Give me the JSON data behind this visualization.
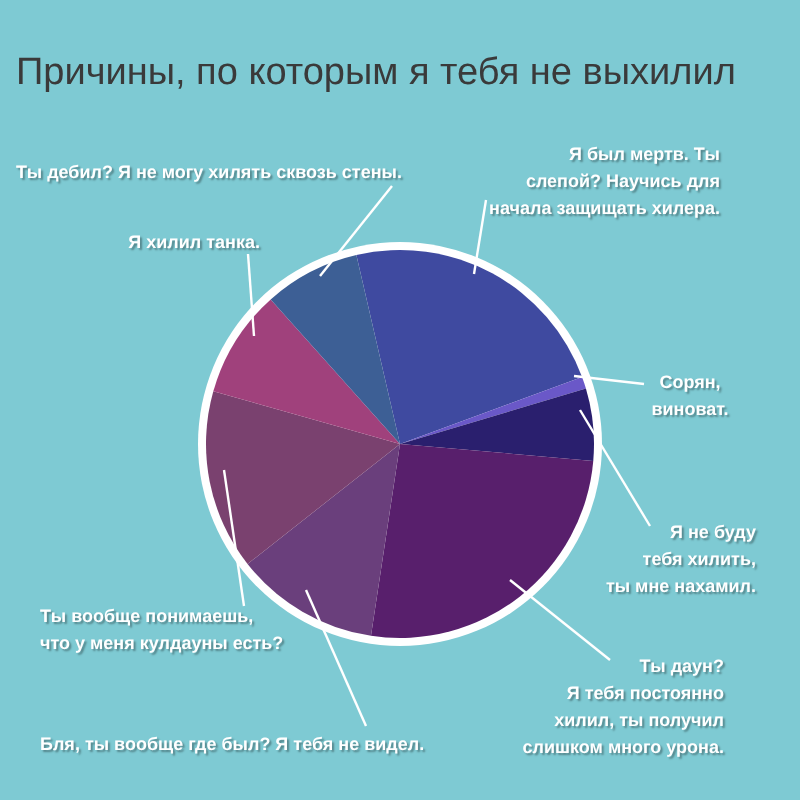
{
  "chart_data": {
    "type": "pie",
    "title": "Причины, по которым я тебя не выхилил",
    "categories": [
      "Я был мертв. Ты слепой? Научись для начала защищать хилера.",
      "Сорян, виноват.",
      "Я не буду тебя хилить, ты мне нахамил.",
      "Ты даун? Я тебя постоянно хилил, ты получил слишком много урона.",
      "Бля, ты вообще где был? Я тебя не видел.",
      "Ты вообще понимаешь, что у меня кулдауны есть?",
      "Я хилил танка.",
      "Ты дебил? Я не могу хилять сквозь стены."
    ],
    "values": [
      23,
      1,
      6,
      26,
      12,
      15,
      9,
      8
    ],
    "colors": [
      "#3f4aa0",
      "#6a58c8",
      "#2a1f6e",
      "#581f6c",
      "#6a3f7c",
      "#7a416f",
      "#a0417c",
      "#3d5f95"
    ]
  }
}
